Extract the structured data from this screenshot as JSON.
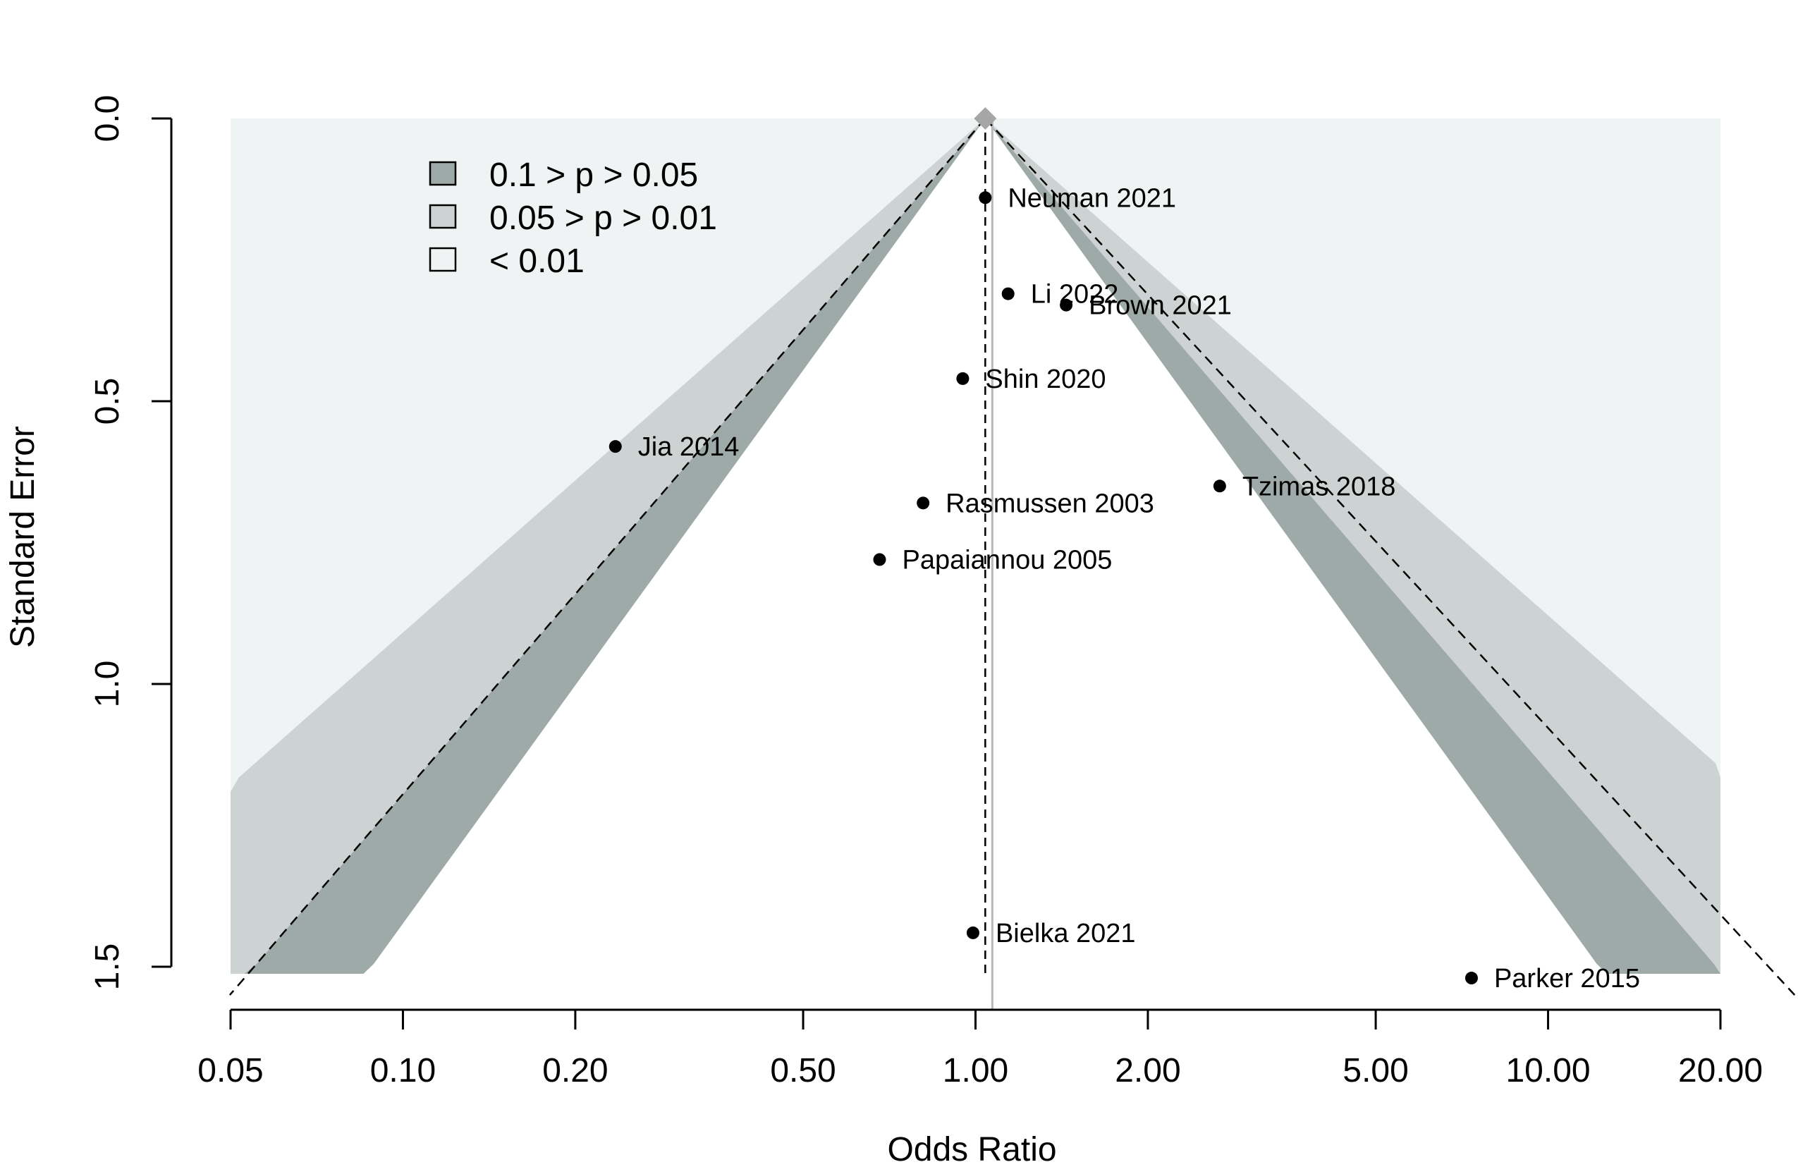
{
  "chart_data": {
    "type": "scatter",
    "subtype": "contour-enhanced funnel plot",
    "title": "",
    "xlabel": "Odds Ratio",
    "ylabel": "Standard Error",
    "x_scale": "log",
    "y_inverted": true,
    "xlim": [
      0.05,
      20
    ],
    "ylim": [
      0,
      1.5
    ],
    "x_ticks": [
      "0.05",
      "0.10",
      "0.20",
      "0.50",
      "1.00",
      "2.00",
      "5.00",
      "10.00",
      "20.00"
    ],
    "y_ticks": [
      "0.0",
      "0.5",
      "1.0",
      "1.5"
    ],
    "pooled_estimate": 1.04,
    "reference_line": 1.07,
    "legend_position": "top-left",
    "legend": [
      {
        "label": "0.1 > p > 0.05",
        "color": "#9eaaa8"
      },
      {
        "label": "0.05 > p > 0.01",
        "color": "#cdd3d2"
      },
      {
        "label": "< 0.01",
        "color": "#f0f3f3"
      }
    ],
    "colors": {
      "inner_region": "#ffffff",
      "outer_region": "#f0f3f3",
      "band_p10": "#9eaaa8",
      "band_p05": "#cdd3d2",
      "pooled_marker": "#a6a6a6",
      "reference_line": "#b8b8b8",
      "points": "#000000"
    },
    "points": [
      {
        "label": "Neuman 2021",
        "or": 1.04,
        "se": 0.14
      },
      {
        "label": "Li 2022",
        "or": 1.14,
        "se": 0.31
      },
      {
        "label": "Brown 2021",
        "or": 1.44,
        "se": 0.33
      },
      {
        "label": "Shin 2020",
        "or": 0.95,
        "se": 0.46
      },
      {
        "label": "Jia 2014",
        "or": 0.235,
        "se": 0.58
      },
      {
        "label": "Tzimas 2018",
        "or": 2.67,
        "se": 0.65
      },
      {
        "label": "Rasmussen 2003",
        "or": 0.81,
        "se": 0.68
      },
      {
        "label": "Papaiannou 2005",
        "or": 0.68,
        "se": 0.78
      },
      {
        "label": "Bielka 2021",
        "or": 0.99,
        "se": 1.44
      },
      {
        "label": "Parker 2015",
        "or": 7.35,
        "se": 1.52
      }
    ]
  }
}
